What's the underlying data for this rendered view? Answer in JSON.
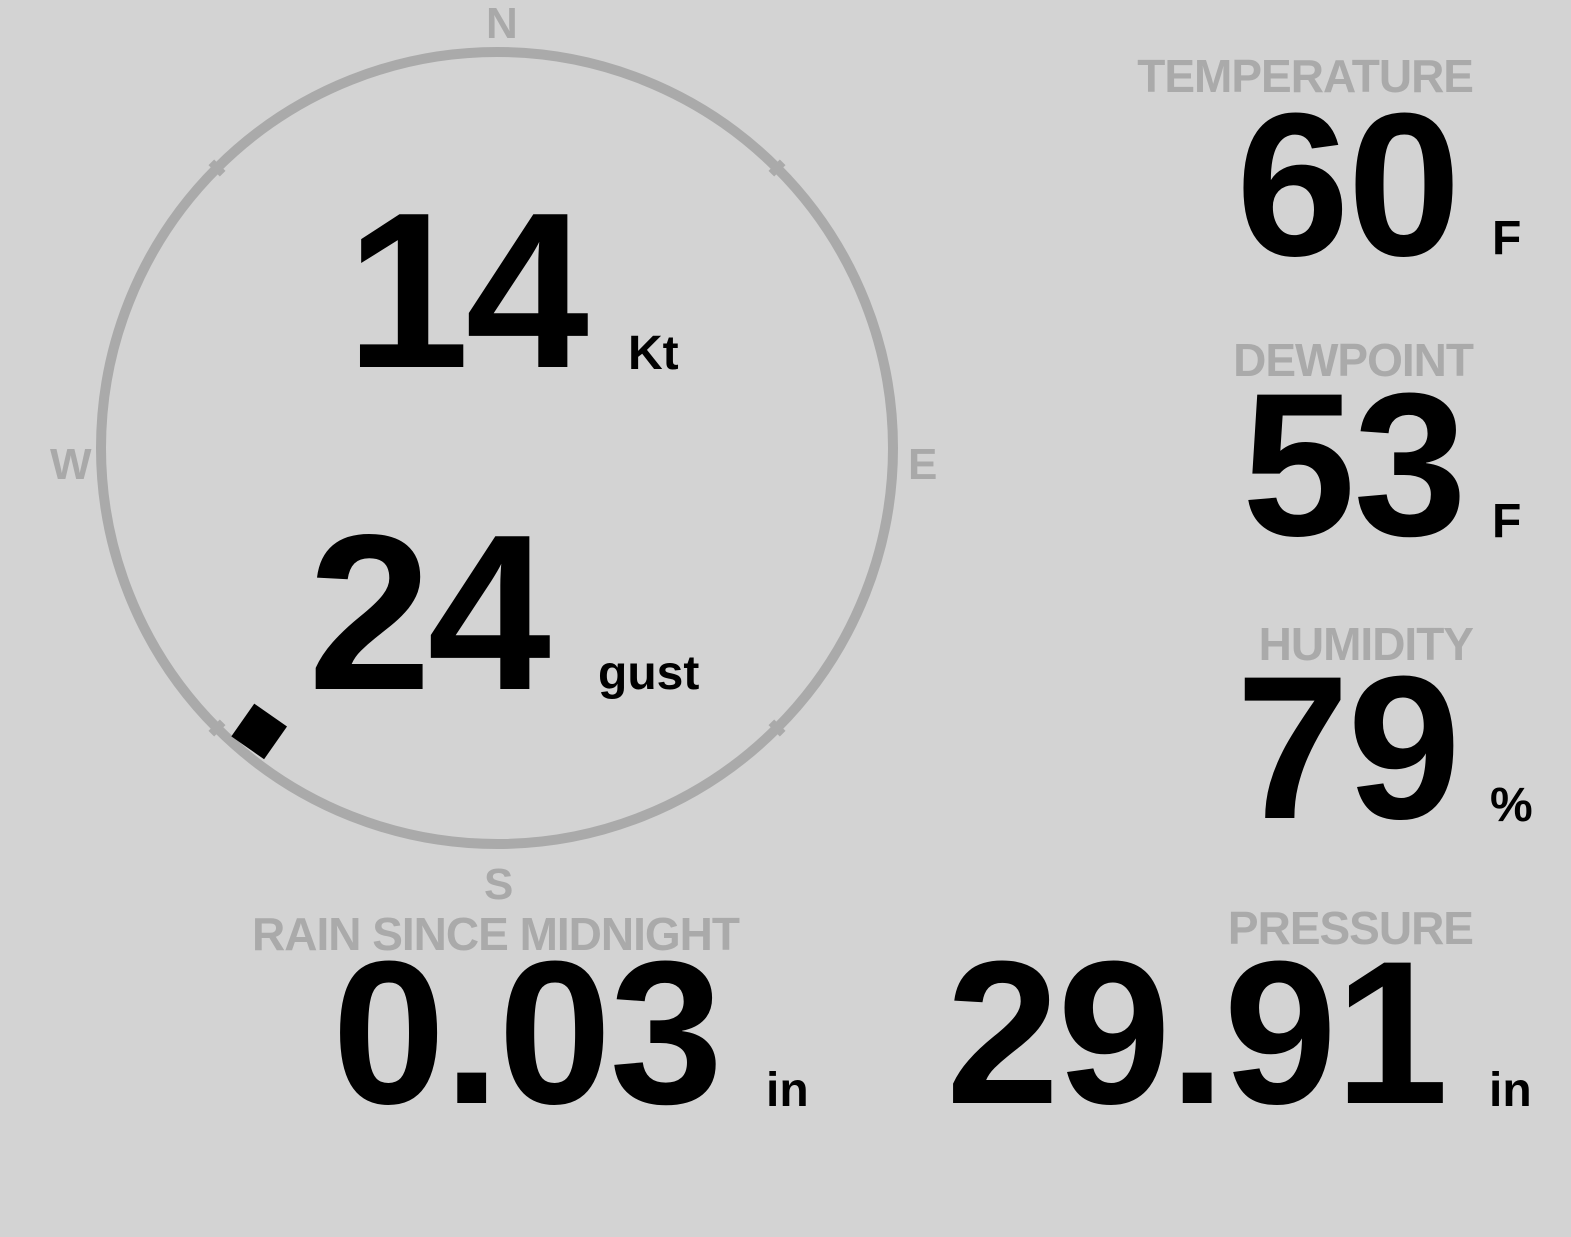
{
  "colors": {
    "background": "#d3d3d3",
    "label": "#aaaaaa",
    "value": "#000000",
    "compass_ring": "#aaaaaa"
  },
  "compass": {
    "north": "N",
    "east": "E",
    "south": "S",
    "west": "W",
    "wind_direction_deg": 220,
    "pointer_icon": "diamond-icon"
  },
  "wind": {
    "speed": "14",
    "speed_unit": "Kt",
    "gust": "24",
    "gust_unit": "gust"
  },
  "temperature": {
    "label": "TEMPERATURE",
    "value": "60",
    "unit": "F"
  },
  "dewpoint": {
    "label": "DEWPOINT",
    "value": "53",
    "unit": "F"
  },
  "humidity": {
    "label": "HUMIDITY",
    "value": "79",
    "unit": "%"
  },
  "pressure": {
    "label": "PRESSURE",
    "value": "29.91",
    "unit": "in"
  },
  "rain": {
    "label": "RAIN SINCE MIDNIGHT",
    "value": "0.03",
    "unit": "in"
  }
}
